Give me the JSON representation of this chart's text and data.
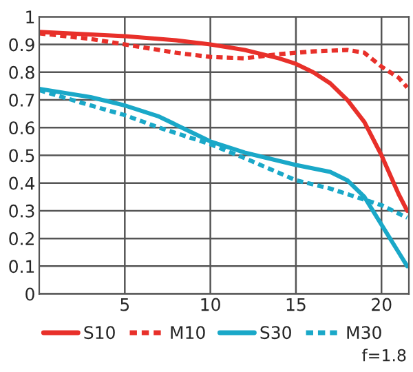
{
  "chart_data": {
    "type": "line",
    "series": [
      {
        "name": "S10",
        "color": "#e8302a",
        "line_style": "solid",
        "x": [
          0,
          5,
          8,
          10,
          12,
          14,
          15,
          16,
          17,
          18,
          19,
          20,
          21,
          21.5
        ],
        "values": [
          0.945,
          0.93,
          0.915,
          0.9,
          0.88,
          0.85,
          0.83,
          0.8,
          0.76,
          0.7,
          0.62,
          0.5,
          0.36,
          0.3
        ]
      },
      {
        "name": "M10",
        "color": "#e8302a",
        "line_style": "dotted",
        "x": [
          0,
          3,
          5,
          8,
          10,
          12,
          14,
          16,
          18,
          19,
          20,
          21,
          21.5
        ],
        "values": [
          0.94,
          0.92,
          0.9,
          0.87,
          0.855,
          0.85,
          0.865,
          0.875,
          0.88,
          0.87,
          0.82,
          0.78,
          0.745
        ]
      },
      {
        "name": "S30",
        "color": "#1aa8c8",
        "line_style": "solid",
        "x": [
          0,
          3,
          5,
          7,
          9,
          10,
          12,
          14,
          15,
          17,
          18,
          19,
          20,
          21,
          21.5
        ],
        "values": [
          0.74,
          0.71,
          0.68,
          0.64,
          0.58,
          0.55,
          0.51,
          0.48,
          0.465,
          0.44,
          0.41,
          0.35,
          0.25,
          0.15,
          0.1
        ]
      },
      {
        "name": "M30",
        "color": "#1aa8c8",
        "line_style": "dotted",
        "x": [
          0,
          3,
          5,
          7,
          10,
          12,
          15,
          17,
          19,
          20,
          21.5
        ],
        "values": [
          0.735,
          0.68,
          0.645,
          0.6,
          0.54,
          0.49,
          0.41,
          0.38,
          0.34,
          0.32,
          0.275
        ]
      }
    ],
    "xlim": [
      0,
      21.6
    ],
    "xticks": [
      5,
      10,
      15,
      20
    ],
    "ylim": [
      0,
      1
    ],
    "yticks": [
      0,
      0.1,
      0.2,
      0.3,
      0.4,
      0.5,
      0.6,
      0.7,
      0.8,
      0.9,
      1
    ],
    "grid": true,
    "legend": "bottom",
    "marker": "none",
    "annotations": [
      "f=1.8"
    ]
  }
}
